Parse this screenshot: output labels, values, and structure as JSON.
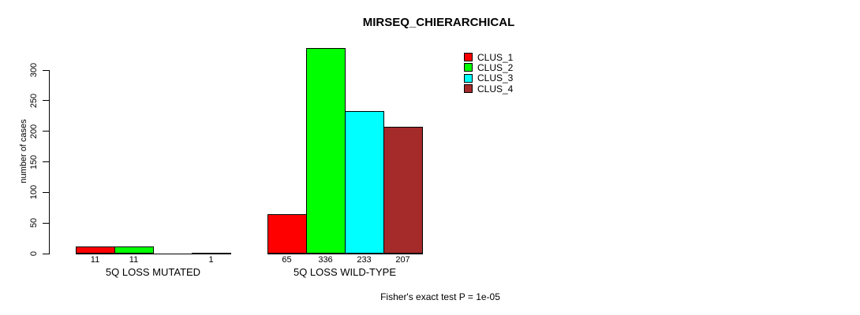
{
  "chart_data": {
    "type": "bar",
    "title": "MIRSEQ_CHIERARCHICAL",
    "ylabel": "number of cases",
    "xlabel": "",
    "ylim": [
      0,
      345
    ],
    "yticks": [
      0,
      50,
      100,
      150,
      200,
      250,
      300
    ],
    "grid": false,
    "legend_position": "top-right",
    "categories": [
      "5Q LOSS MUTATED",
      "5Q LOSS WILD-TYPE"
    ],
    "series": [
      {
        "name": "CLUS_1",
        "color": "#ff0000",
        "values": [
          11,
          65
        ]
      },
      {
        "name": "CLUS_2",
        "color": "#00ff00",
        "values": [
          11,
          336
        ]
      },
      {
        "name": "CLUS_3",
        "color": "#00ffff",
        "values": [
          0,
          233
        ]
      },
      {
        "name": "CLUS_4",
        "color": "#a52a2a",
        "values": [
          1,
          207
        ]
      }
    ],
    "bar_value_labels": [
      [
        "11",
        "11",
        "",
        "1"
      ],
      [
        "65",
        "336",
        "233",
        "207"
      ]
    ],
    "annotation": "Fisher's exact test P = 1e-05",
    "colors": {
      "axis": "#000000",
      "text": "#000000",
      "background": "#ffffff"
    }
  }
}
